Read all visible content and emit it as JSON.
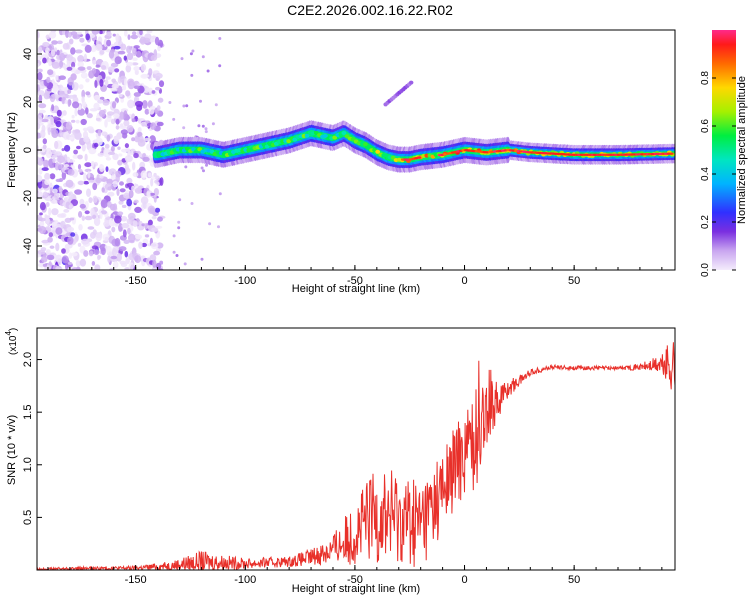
{
  "title": "C2E2.2026.002.16.22.R02",
  "chart_data": [
    {
      "type": "heatmap",
      "xlabel": "Height of straight line (km)",
      "ylabel": "Frequency (Hz)",
      "xlim": [
        -195,
        96
      ],
      "ylim": [
        -50,
        50
      ],
      "xticks": [
        "-150",
        "-100",
        "-50",
        "0",
        "50"
      ],
      "yticks": [
        "-40",
        "-20",
        "0",
        "20",
        "40"
      ],
      "ridge": {
        "x": [
          -140,
          -135,
          -130,
          -120,
          -110,
          -100,
          -90,
          -80,
          -70,
          -60,
          -55,
          -50,
          -45,
          -40,
          -35,
          -30,
          -25,
          -20,
          -10,
          0,
          10,
          20,
          30,
          50,
          70,
          96
        ],
        "freq": [
          -2,
          -1,
          0,
          0,
          -2,
          0,
          2,
          4,
          7,
          5,
          7,
          4,
          2,
          -1,
          -3,
          -4,
          -4,
          -3,
          -2,
          0,
          -1,
          0,
          -1,
          -2,
          -2,
          -1.5
        ]
      },
      "colorbar": {
        "label": "Normalized spectral amplitude",
        "ticks": [
          "0.0",
          "0.2",
          "0.4",
          "0.6",
          "0.8"
        ],
        "range": [
          0,
          1
        ]
      }
    },
    {
      "type": "line",
      "xlabel": "Height of straight line (km)",
      "ylabel": "SNR (10 * v/v)",
      "y_multiplier": "(x10",
      "y_multiplier_exp": "4",
      "y_multiplier_close": ")",
      "xlim": [
        -195,
        96
      ],
      "ylim": [
        0,
        2.3
      ],
      "xticks": [
        "-150",
        "-100",
        "-50",
        "0",
        "50"
      ],
      "yticks": [
        "0.5",
        "1.0",
        "1.5",
        "2.0"
      ],
      "color": "#e8302a",
      "envelope": {
        "x": [
          -195,
          -150,
          -135,
          -120,
          -100,
          -80,
          -70,
          -60,
          -50,
          -40,
          -30,
          -20,
          -10,
          0,
          5,
          10,
          20,
          30,
          40,
          50,
          60,
          70,
          80,
          90,
          96
        ],
        "base": [
          0.01,
          0.02,
          0.04,
          0.08,
          0.06,
          0.08,
          0.12,
          0.2,
          0.35,
          0.55,
          0.5,
          0.45,
          0.75,
          1.15,
          1.25,
          1.5,
          1.72,
          1.88,
          1.93,
          1.92,
          1.92,
          1.92,
          1.93,
          1.95,
          1.95
        ],
        "amp": [
          0.01,
          0.02,
          0.04,
          0.1,
          0.05,
          0.05,
          0.08,
          0.15,
          0.3,
          0.5,
          0.45,
          0.45,
          0.4,
          0.45,
          0.5,
          0.3,
          0.08,
          0.03,
          0.02,
          0.02,
          0.02,
          0.02,
          0.03,
          0.1,
          0.35
        ]
      }
    }
  ]
}
